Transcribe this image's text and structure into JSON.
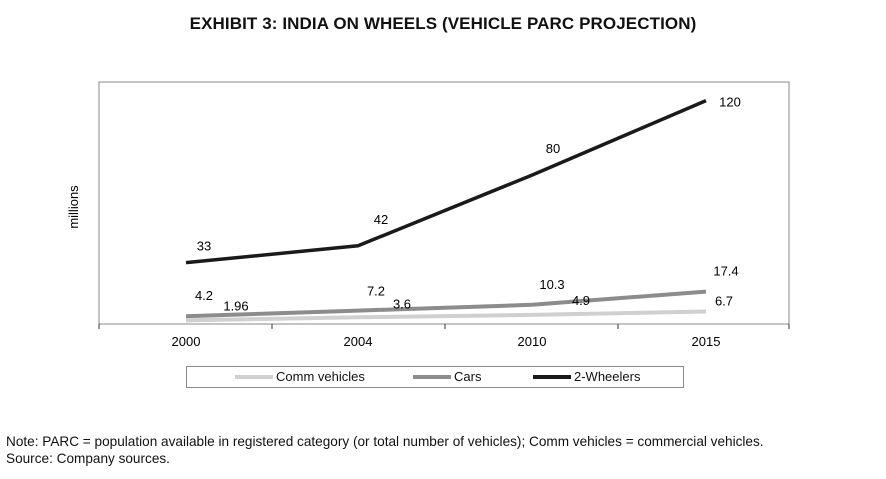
{
  "chart_data": {
    "type": "line",
    "title": "EXHIBIT 3: INDIA ON WHEELS (VEHICLE PARC PROJECTION)",
    "xlabel": "",
    "ylabel": "millions",
    "categories": [
      "2000",
      "2004",
      "2010",
      "2015"
    ],
    "ylim": [
      0,
      130
    ],
    "grid": false,
    "legend_position": "bottom",
    "series": [
      {
        "name": "Comm vehicles",
        "color": "#d0d0d0",
        "values": [
          1.96,
          3.6,
          4.9,
          6.7
        ],
        "labels": [
          "1.96",
          "3.6",
          "4.9",
          "6.7"
        ]
      },
      {
        "name": "Cars",
        "color": "#8c8c8c",
        "values": [
          4.2,
          7.2,
          10.3,
          17.4
        ],
        "labels": [
          "4.2",
          "7.2",
          "10.3",
          "17.4"
        ]
      },
      {
        "name": "2-Wheelers",
        "color": "#1a1a1a",
        "values": [
          33,
          42,
          80,
          120
        ],
        "labels": [
          "33",
          "42",
          "80",
          "120"
        ]
      }
    ]
  },
  "footer": {
    "note": "Note: PARC = population available in registered category (or total number of vehicles); Comm vehicles = commercial vehicles.",
    "source": "Source: Company sources."
  }
}
